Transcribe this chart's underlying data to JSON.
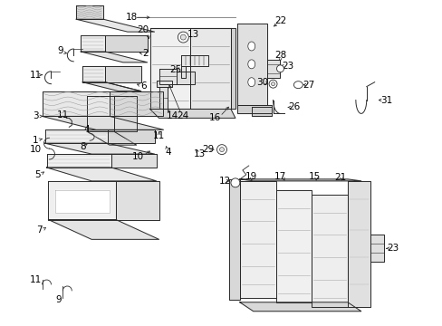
{
  "background_color": "#ffffff",
  "fig_width": 4.89,
  "fig_height": 3.6,
  "dpi": 100,
  "line_color": "#2a2a2a",
  "label_color": "#000000",
  "label_fontsize": 7.5
}
